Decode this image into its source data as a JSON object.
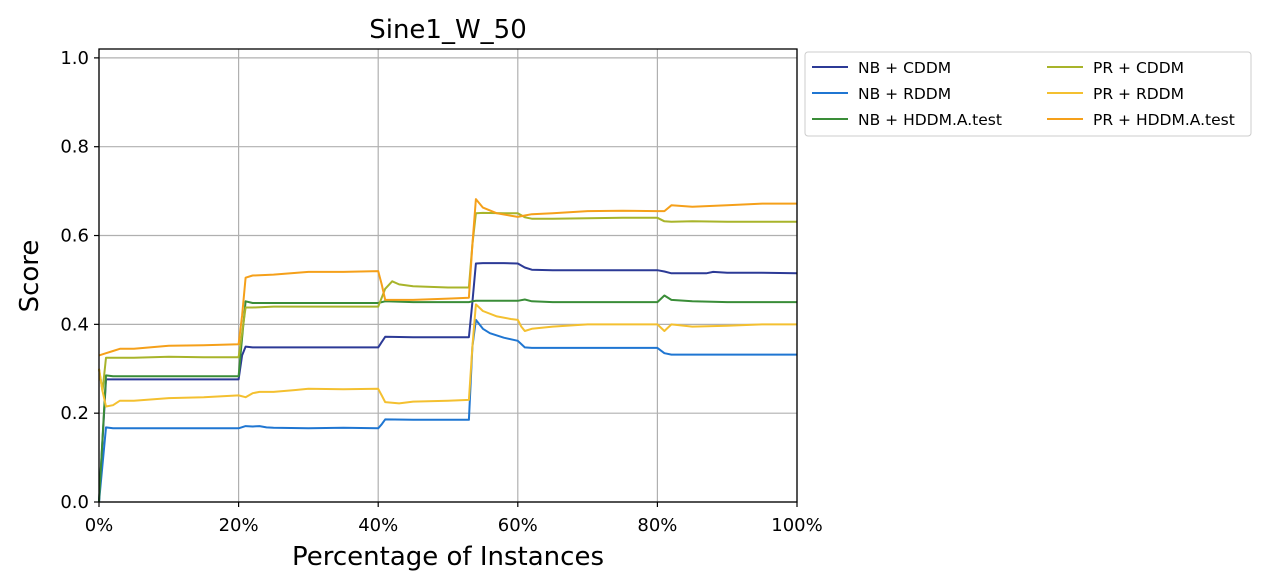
{
  "chart_data": {
    "type": "line",
    "title": "Sine1_W_50",
    "xlabel": "Percentage of Instances",
    "ylabel": "Score",
    "xlim": [
      0,
      100
    ],
    "ylim": [
      0,
      1.02
    ],
    "x_ticks": [
      {
        "value": 0,
        "label": "0%"
      },
      {
        "value": 20,
        "label": "20%"
      },
      {
        "value": 40,
        "label": "40%"
      },
      {
        "value": 60,
        "label": "60%"
      },
      {
        "value": 80,
        "label": "80%"
      },
      {
        "value": 100,
        "label": "100%"
      }
    ],
    "y_ticks": [
      {
        "value": 0.0,
        "label": "0.0"
      },
      {
        "value": 0.2,
        "label": "0.2"
      },
      {
        "value": 0.4,
        "label": "0.4"
      },
      {
        "value": 0.6,
        "label": "0.6"
      },
      {
        "value": 0.8,
        "label": "0.8"
      },
      {
        "value": 1.0,
        "label": "1.0"
      }
    ],
    "grid": true,
    "legend_position": "outside right, top",
    "legend_columns": 2,
    "series": [
      {
        "name": "NB + CDDM",
        "color": "#2c3a96",
        "x": [
          0,
          1,
          5,
          10,
          20,
          20.5,
          21,
          22,
          25,
          30,
          35,
          40,
          40.5,
          41,
          45,
          50,
          53,
          53.5,
          54,
          55,
          58,
          60,
          61,
          62,
          65,
          70,
          75,
          80,
          81,
          82,
          85,
          87,
          88,
          90,
          95,
          100
        ],
        "y": [
          0,
          0.276,
          0.276,
          0.276,
          0.276,
          0.33,
          0.35,
          0.348,
          0.348,
          0.348,
          0.348,
          0.348,
          0.36,
          0.372,
          0.371,
          0.371,
          0.371,
          0.45,
          0.537,
          0.538,
          0.538,
          0.537,
          0.528,
          0.523,
          0.522,
          0.522,
          0.522,
          0.522,
          0.519,
          0.515,
          0.515,
          0.515,
          0.518,
          0.516,
          0.516,
          0.515
        ]
      },
      {
        "name": "NB + RDDM",
        "color": "#1f76d2",
        "x": [
          0,
          1,
          2,
          5,
          10,
          20,
          21,
          22,
          23,
          24,
          25,
          30,
          35,
          40,
          40.5,
          41,
          45,
          50,
          53,
          53.5,
          54,
          55,
          56,
          58,
          60,
          61,
          62,
          65,
          70,
          75,
          80,
          81,
          82,
          85,
          90,
          95,
          100
        ],
        "y": [
          0,
          0.168,
          0.166,
          0.166,
          0.166,
          0.166,
          0.171,
          0.17,
          0.171,
          0.168,
          0.167,
          0.166,
          0.167,
          0.166,
          0.175,
          0.186,
          0.185,
          0.185,
          0.185,
          0.35,
          0.41,
          0.39,
          0.38,
          0.37,
          0.363,
          0.348,
          0.347,
          0.347,
          0.347,
          0.347,
          0.347,
          0.335,
          0.332,
          0.332,
          0.332,
          0.332,
          0.332
        ]
      },
      {
        "name": "NB + HDDM.A.test",
        "color": "#3a8d38",
        "x": [
          0,
          1,
          2,
          5,
          10,
          20,
          20.5,
          21,
          22,
          25,
          30,
          35,
          40,
          40.5,
          41,
          45,
          50,
          53,
          53.5,
          54,
          55,
          58,
          60,
          61,
          62,
          65,
          70,
          75,
          80,
          81,
          82,
          85,
          90,
          95,
          100
        ],
        "y": [
          0,
          0.285,
          0.283,
          0.283,
          0.283,
          0.283,
          0.37,
          0.452,
          0.448,
          0.448,
          0.448,
          0.448,
          0.448,
          0.45,
          0.452,
          0.45,
          0.45,
          0.45,
          0.452,
          0.453,
          0.453,
          0.453,
          0.453,
          0.456,
          0.452,
          0.45,
          0.45,
          0.45,
          0.45,
          0.465,
          0.455,
          0.452,
          0.45,
          0.45,
          0.45
        ]
      },
      {
        "name": "PR + CDDM",
        "color": "#a8b42a",
        "x": [
          0,
          0.5,
          1,
          2,
          5,
          10,
          15,
          20,
          20.5,
          21,
          22,
          25,
          30,
          35,
          40,
          40.5,
          41,
          42,
          43,
          45,
          50,
          53,
          53.5,
          54,
          55,
          58,
          60,
          61,
          62,
          65,
          70,
          75,
          80,
          81,
          82,
          85,
          90,
          95,
          100
        ],
        "y": [
          0.3,
          0.25,
          0.325,
          0.325,
          0.325,
          0.327,
          0.326,
          0.326,
          0.38,
          0.438,
          0.438,
          0.44,
          0.44,
          0.44,
          0.44,
          0.46,
          0.48,
          0.497,
          0.49,
          0.486,
          0.483,
          0.483,
          0.58,
          0.65,
          0.651,
          0.65,
          0.65,
          0.641,
          0.638,
          0.638,
          0.639,
          0.64,
          0.64,
          0.632,
          0.631,
          0.632,
          0.631,
          0.631,
          0.631
        ]
      },
      {
        "name": "PR + RDDM",
        "color": "#f4c030",
        "x": [
          0,
          0.5,
          1,
          2,
          3,
          5,
          10,
          15,
          20,
          21,
          22,
          23,
          25,
          28,
          30,
          35,
          40,
          40.5,
          41,
          43,
          45,
          50,
          53,
          53.5,
          54,
          55,
          57,
          59,
          60,
          60.5,
          61,
          62,
          65,
          70,
          75,
          80,
          81,
          82,
          85,
          90,
          95,
          100
        ],
        "y": [
          0.3,
          0.25,
          0.215,
          0.218,
          0.228,
          0.228,
          0.234,
          0.236,
          0.24,
          0.236,
          0.245,
          0.248,
          0.248,
          0.252,
          0.255,
          0.254,
          0.255,
          0.24,
          0.225,
          0.222,
          0.226,
          0.228,
          0.23,
          0.35,
          0.445,
          0.43,
          0.418,
          0.412,
          0.41,
          0.395,
          0.385,
          0.39,
          0.395,
          0.4,
          0.4,
          0.4,
          0.385,
          0.4,
          0.395,
          0.397,
          0.4,
          0.4
        ]
      },
      {
        "name": "PR + HDDM.A.test",
        "color": "#f5a01a",
        "x": [
          0,
          1,
          2,
          3,
          5,
          10,
          15,
          20,
          20.5,
          21,
          22,
          25,
          30,
          35,
          40,
          40.5,
          41,
          45,
          50,
          53,
          53.5,
          54,
          55,
          57,
          60,
          61,
          62,
          65,
          70,
          75,
          80,
          81,
          82,
          85,
          90,
          95,
          100
        ],
        "y": [
          0.33,
          0.335,
          0.34,
          0.345,
          0.345,
          0.352,
          0.353,
          0.355,
          0.42,
          0.505,
          0.51,
          0.512,
          0.518,
          0.518,
          0.52,
          0.49,
          0.455,
          0.455,
          0.458,
          0.46,
          0.58,
          0.682,
          0.663,
          0.65,
          0.642,
          0.645,
          0.648,
          0.65,
          0.655,
          0.656,
          0.655,
          0.655,
          0.668,
          0.665,
          0.668,
          0.672,
          0.672
        ]
      }
    ]
  }
}
